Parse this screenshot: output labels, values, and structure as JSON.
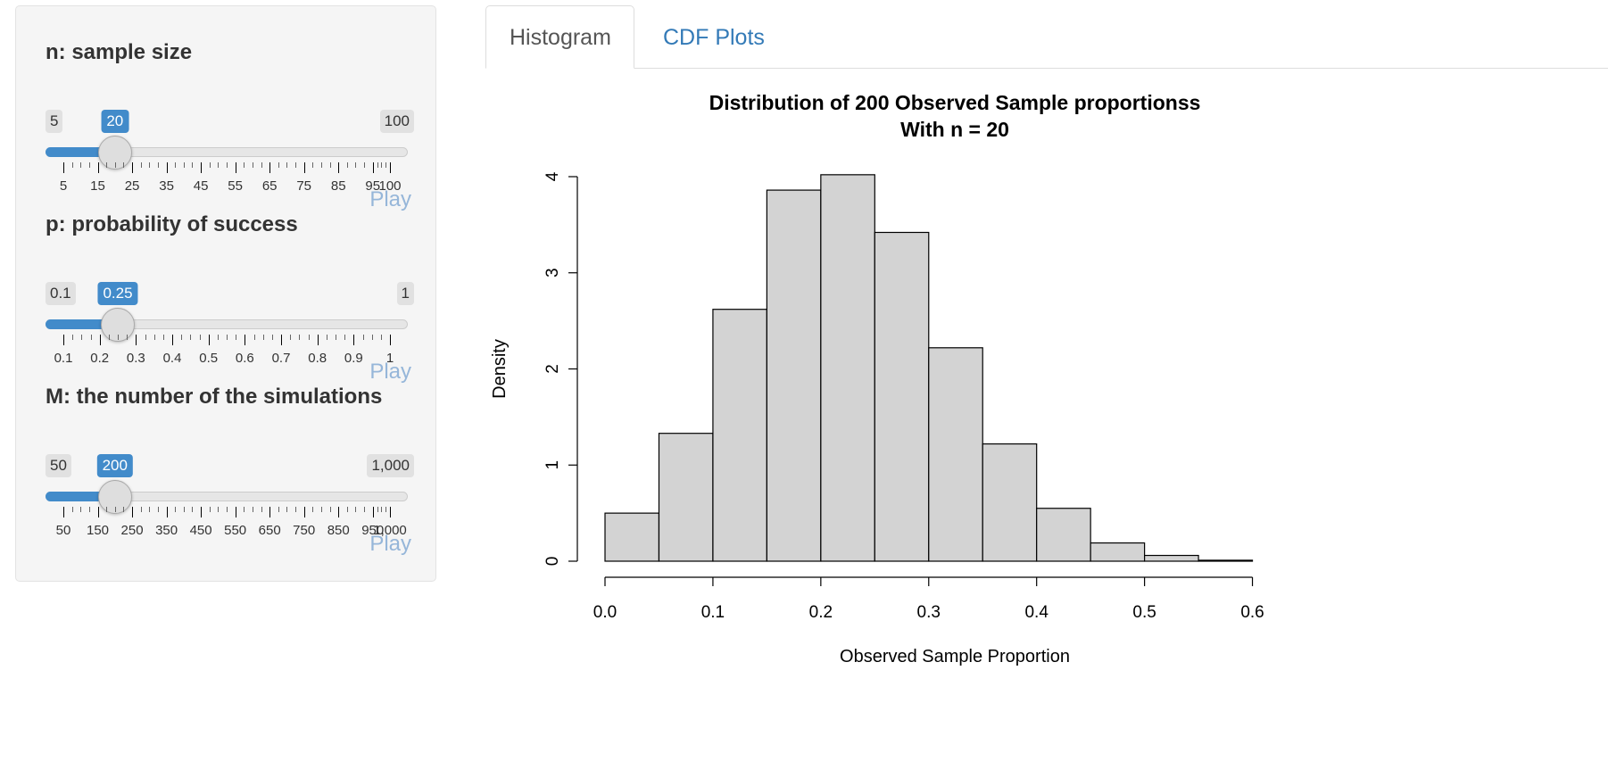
{
  "sidebar": {
    "sliders": [
      {
        "label": "n: sample size",
        "min_label": "5",
        "max_label": "100",
        "value_label": "20",
        "min": 5,
        "max": 100,
        "value": 20,
        "major_ticks": [
          "5",
          "15",
          "25",
          "35",
          "45",
          "55",
          "65",
          "75",
          "85",
          "95",
          "100"
        ],
        "play_label": "Play"
      },
      {
        "label": "p: probability of success",
        "min_label": "0.1",
        "max_label": "1",
        "value_label": "0.25",
        "min": 0.1,
        "max": 1,
        "value": 0.25,
        "major_ticks": [
          "0.1",
          "0.2",
          "0.3",
          "0.4",
          "0.5",
          "0.6",
          "0.7",
          "0.8",
          "0.9",
          "1"
        ],
        "play_label": "Play"
      },
      {
        "label": "M: the number of the simulations",
        "min_label": "50",
        "max_label": "1,000",
        "value_label": "200",
        "min": 50,
        "max": 1000,
        "value": 200,
        "major_ticks": [
          "50",
          "150",
          "250",
          "350",
          "450",
          "550",
          "650",
          "750",
          "850",
          "950",
          "1,000"
        ],
        "play_label": "Play"
      }
    ]
  },
  "tabs": [
    {
      "label": "Histogram",
      "active": true
    },
    {
      "label": "CDF Plots",
      "active": false
    }
  ],
  "chart_data": {
    "type": "bar",
    "title": "Distribution of 200 Observed Sample proportionss",
    "subtitle": "With n = 20",
    "xlabel": "Observed Sample Proportion",
    "ylabel": "Density",
    "bin_edges": [
      0.0,
      0.05,
      0.1,
      0.15,
      0.2,
      0.25,
      0.3,
      0.35,
      0.4,
      0.45,
      0.5,
      0.55,
      0.6,
      0.65
    ],
    "values": [
      0.5,
      1.33,
      2.62,
      3.86,
      4.02,
      3.42,
      2.22,
      1.22,
      0.55,
      0.19,
      0.06,
      0.01,
      0.0
    ],
    "xlim": [
      0.0,
      0.65
    ],
    "ylim": [
      0,
      4
    ],
    "x_ticks": [
      "0.0",
      "0.1",
      "0.2",
      "0.3",
      "0.4",
      "0.5",
      "0.6"
    ],
    "y_ticks": [
      "0",
      "1",
      "2",
      "3",
      "4"
    ],
    "bar_color": "#d3d3d3",
    "grid": false
  },
  "colors": {
    "accent": "#428bca",
    "tab_link": "#337ab7",
    "play": "#96b6d9"
  }
}
